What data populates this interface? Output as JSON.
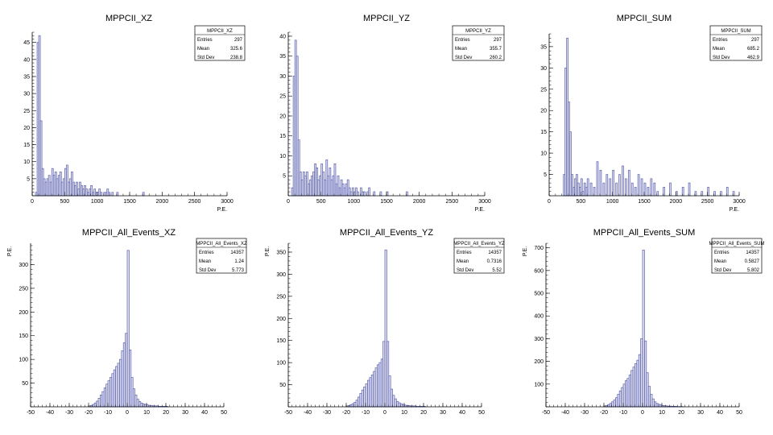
{
  "chart_data": [
    {
      "type": "bar",
      "title": "MPPCII_XZ",
      "xlabel": "P.E.",
      "ylabel": "",
      "xlim": [
        0,
        3000
      ],
      "ylim": [
        0,
        48
      ],
      "xticks": [
        0,
        500,
        1000,
        1500,
        2000,
        2500,
        3000
      ],
      "yticks": [
        5,
        10,
        15,
        20,
        25,
        30,
        35,
        40,
        45
      ],
      "stats": {
        "name": "MPPCII_XZ",
        "rows": [
          {
            "label": "Entries",
            "value": "297"
          },
          {
            "label": "Mean",
            "value": "325.6"
          },
          {
            "label": "Std Dev",
            "value": "238.8"
          }
        ]
      },
      "bin_width": 25,
      "x": [
        50,
        75,
        100,
        125,
        150,
        175,
        200,
        225,
        250,
        275,
        300,
        325,
        350,
        375,
        400,
        425,
        450,
        475,
        500,
        525,
        550,
        575,
        600,
        625,
        650,
        675,
        700,
        725,
        750,
        775,
        800,
        825,
        850,
        875,
        900,
        925,
        950,
        975,
        1000,
        1025,
        1050,
        1075,
        1100,
        1125,
        1150,
        1175,
        1200,
        1225,
        1250,
        1300,
        1400,
        1500,
        1600,
        1700,
        1900,
        2100,
        2300
      ],
      "values": [
        1,
        45,
        47,
        22,
        8,
        5,
        4,
        5,
        6,
        4,
        8,
        6,
        7,
        5,
        6,
        7,
        4,
        5,
        8,
        9,
        4,
        5,
        7,
        4,
        3,
        4,
        2,
        4,
        3,
        2,
        3,
        2,
        1,
        2,
        3,
        1,
        2,
        1,
        1,
        2,
        1,
        0,
        1,
        1,
        2,
        1,
        0,
        1,
        0,
        1,
        0,
        0,
        0,
        1,
        0,
        0,
        0
      ]
    },
    {
      "type": "bar",
      "title": "MPPCII_YZ",
      "xlabel": "P.E.",
      "ylabel": "",
      "xlim": [
        0,
        3000
      ],
      "ylim": [
        0,
        41
      ],
      "xticks": [
        0,
        500,
        1000,
        1500,
        2000,
        2500,
        3000
      ],
      "yticks": [
        5,
        10,
        15,
        20,
        25,
        30,
        35,
        40
      ],
      "stats": {
        "name": "MPPCII_YZ",
        "rows": [
          {
            "label": "Entries",
            "value": "297"
          },
          {
            "label": "Mean",
            "value": "355.7"
          },
          {
            "label": "Std Dev",
            "value": "260.2"
          }
        ]
      },
      "bin_width": 25,
      "x": [
        50,
        75,
        100,
        125,
        150,
        175,
        200,
        225,
        250,
        275,
        300,
        325,
        350,
        375,
        400,
        425,
        450,
        475,
        500,
        525,
        550,
        575,
        600,
        625,
        650,
        675,
        700,
        725,
        750,
        775,
        800,
        825,
        850,
        875,
        900,
        925,
        950,
        975,
        1000,
        1025,
        1050,
        1075,
        1100,
        1125,
        1150,
        1175,
        1200,
        1225,
        1250,
        1300,
        1400,
        1500,
        1600,
        1700,
        1800,
        2000,
        2300
      ],
      "values": [
        2,
        30,
        39,
        35,
        14,
        6,
        4,
        6,
        5,
        6,
        3,
        4,
        5,
        6,
        8,
        7,
        4,
        5,
        8,
        6,
        4,
        9,
        5,
        7,
        4,
        5,
        8,
        3,
        5,
        2,
        4,
        3,
        2,
        3,
        4,
        2,
        1,
        2,
        1,
        2,
        1,
        0,
        2,
        1,
        1,
        0,
        1,
        2,
        0,
        1,
        1,
        1,
        0,
        0,
        1,
        0,
        0
      ]
    },
    {
      "type": "bar",
      "title": "MPPCII_SUM",
      "xlabel": "P.E.",
      "ylabel": "",
      "xlim": [
        0,
        3000
      ],
      "ylim": [
        0,
        38
      ],
      "xticks": [
        0,
        500,
        1000,
        1500,
        2000,
        2500,
        3000
      ],
      "yticks": [
        5,
        10,
        15,
        20,
        25,
        30,
        35
      ],
      "stats": {
        "name": "MPPCII_SUM",
        "rows": [
          {
            "label": "Entries",
            "value": "297"
          },
          {
            "label": "Mean",
            "value": "685.2"
          },
          {
            "label": "Std Dev",
            "value": "462.9"
          }
        ]
      },
      "bin_width": 25,
      "x": [
        225,
        250,
        275,
        300,
        325,
        350,
        375,
        400,
        425,
        450,
        475,
        500,
        525,
        550,
        575,
        600,
        650,
        700,
        750,
        800,
        850,
        900,
        950,
        1000,
        1050,
        1100,
        1150,
        1200,
        1250,
        1300,
        1350,
        1400,
        1450,
        1500,
        1550,
        1600,
        1650,
        1700,
        1800,
        1900,
        2000,
        2100,
        2200,
        2300,
        2400,
        2500,
        2600,
        2700,
        2800,
        2900
      ],
      "values": [
        5,
        30,
        37,
        22,
        15,
        5,
        2,
        4,
        5,
        3,
        2,
        4,
        1,
        3,
        2,
        4,
        3,
        2,
        8,
        6,
        3,
        5,
        4,
        6,
        3,
        5,
        7,
        4,
        6,
        3,
        2,
        5,
        4,
        3,
        2,
        4,
        3,
        1,
        2,
        3,
        1,
        2,
        3,
        1,
        1,
        2,
        1,
        1,
        2,
        1
      ]
    },
    {
      "type": "bar",
      "title": "MPPCII_All_Events_XZ",
      "xlabel": "",
      "ylabel": "P.E.",
      "xlim": [
        -50,
        50
      ],
      "ylim": [
        0,
        345
      ],
      "xticks": [
        -50,
        -40,
        -30,
        -20,
        -10,
        0,
        10,
        20,
        30,
        40,
        50
      ],
      "yticks": [
        50,
        100,
        150,
        200,
        250,
        300
      ],
      "stats": {
        "name": "MPPCII_All_Events_XZ",
        "rows": [
          {
            "label": "Entries",
            "value": "14357"
          },
          {
            "label": "Mean",
            "value": "1.24"
          },
          {
            "label": "Std Dev",
            "value": "5.773"
          }
        ]
      },
      "bin_width": 1,
      "x": [
        -20,
        -19,
        -18,
        -17,
        -16,
        -15,
        -14,
        -13,
        -12,
        -11,
        -10,
        -9,
        -8,
        -7,
        -6,
        -5,
        -4,
        -3,
        -2,
        -1,
        0,
        1,
        2,
        3,
        4,
        5,
        6,
        7,
        8,
        9,
        10,
        11,
        12,
        13,
        14,
        15,
        16,
        17,
        18,
        19,
        20
      ],
      "values": [
        2,
        3,
        5,
        8,
        12,
        18,
        25,
        32,
        40,
        48,
        55,
        62,
        70,
        78,
        85,
        92,
        100,
        118,
        135,
        155,
        330,
        120,
        62,
        38,
        25,
        16,
        11,
        8,
        6,
        5,
        4,
        3,
        3,
        2,
        2,
        2,
        1,
        1,
        1,
        1,
        1
      ]
    },
    {
      "type": "bar",
      "title": "MPPCII_All_Events_YZ",
      "xlabel": "",
      "ylabel": "P.E.",
      "xlim": [
        -50,
        50
      ],
      "ylim": [
        0,
        370
      ],
      "xticks": [
        -50,
        -40,
        -30,
        -20,
        -10,
        0,
        10,
        20,
        30,
        40,
        50
      ],
      "yticks": [
        50,
        100,
        150,
        200,
        250,
        300,
        350
      ],
      "stats": {
        "name": "MPPCII_All_Events_YZ",
        "rows": [
          {
            "label": "Entries",
            "value": "14357"
          },
          {
            "label": "Mean",
            "value": "0.7316"
          },
          {
            "label": "Std Dev",
            "value": "5.52"
          }
        ]
      },
      "bin_width": 1,
      "x": [
        -20,
        -19,
        -18,
        -17,
        -16,
        -15,
        -14,
        -13,
        -12,
        -11,
        -10,
        -9,
        -8,
        -7,
        -6,
        -5,
        -4,
        -3,
        -2,
        -1,
        0,
        1,
        2,
        3,
        4,
        5,
        6,
        7,
        8,
        9,
        10,
        11,
        12,
        13,
        14,
        15,
        16,
        17,
        18,
        19,
        20
      ],
      "values": [
        2,
        3,
        5,
        7,
        10,
        15,
        22,
        30,
        38,
        45,
        52,
        60,
        66,
        72,
        80,
        88,
        95,
        100,
        108,
        148,
        355,
        148,
        70,
        40,
        26,
        18,
        12,
        9,
        7,
        5,
        4,
        3,
        3,
        2,
        2,
        2,
        1,
        1,
        1,
        1,
        1
      ]
    },
    {
      "type": "bar",
      "title": "MPPCII_All_Events_SUM",
      "xlabel": "",
      "ylabel": "P.E.",
      "xlim": [
        -50,
        50
      ],
      "ylim": [
        0,
        720
      ],
      "xticks": [
        -50,
        -40,
        -30,
        -20,
        -10,
        0,
        10,
        20,
        30,
        40,
        50
      ],
      "yticks": [
        100,
        200,
        300,
        400,
        500,
        600,
        700
      ],
      "stats": {
        "name": "MPPCII_All_Events_SUM",
        "rows": [
          {
            "label": "Entries",
            "value": "14357"
          },
          {
            "label": "Mean",
            "value": "0.5827"
          },
          {
            "label": "Std Dev",
            "value": "5.802"
          }
        ]
      },
      "bin_width": 1,
      "x": [
        -20,
        -19,
        -18,
        -17,
        -16,
        -15,
        -14,
        -13,
        -12,
        -11,
        -10,
        -9,
        -8,
        -7,
        -6,
        -5,
        -4,
        -3,
        -2,
        -1,
        0,
        1,
        2,
        3,
        4,
        5,
        6,
        7,
        8,
        9,
        10,
        11,
        12,
        13,
        14,
        15,
        16,
        17,
        18,
        19,
        20
      ],
      "values": [
        4,
        6,
        10,
        15,
        22,
        30,
        40,
        55,
        70,
        85,
        100,
        115,
        125,
        140,
        160,
        175,
        190,
        205,
        230,
        300,
        690,
        290,
        150,
        90,
        55,
        35,
        22,
        15,
        11,
        8,
        6,
        5,
        4,
        3,
        3,
        2,
        2,
        2,
        1,
        1,
        1
      ]
    }
  ],
  "colors": {
    "hist_line": "#5a5fae",
    "hist_fill": "#9ea4d6",
    "axis": "#000000"
  }
}
